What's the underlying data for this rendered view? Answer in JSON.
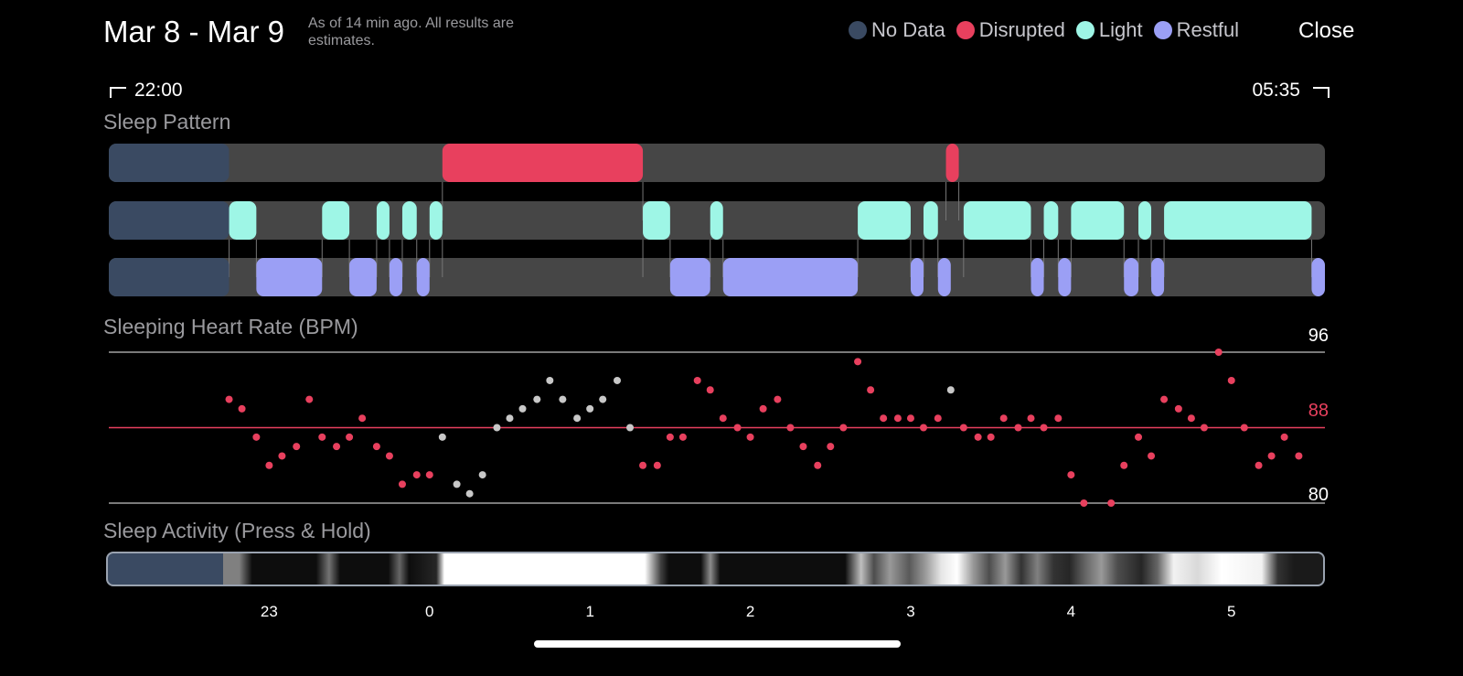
{
  "header": {
    "title": "Mar 8 - Mar 9",
    "subtitle": "As of 14 min ago. All results are estimates.",
    "close_label": "Close"
  },
  "legend": [
    {
      "label": "No Data",
      "color": "#3a4a62"
    },
    {
      "label": "Disrupted",
      "color": "#e8405e"
    },
    {
      "label": "Light",
      "color": "#9ef6e6"
    },
    {
      "label": "Restful",
      "color": "#9b9ff5"
    }
  ],
  "range": {
    "start": "22:00",
    "end": "05:35"
  },
  "sections": {
    "sleep_pattern": "Sleep Pattern",
    "heart_rate": "Sleeping Heart Rate (BPM)",
    "activity": "Sleep Activity (Press & Hold)"
  },
  "axis_ticks": [
    "23",
    "0",
    "1",
    "2",
    "3",
    "4",
    "5"
  ],
  "chart_data": [
    {
      "type": "timeline",
      "title": "Sleep Pattern",
      "x_unit": "hours since 22:00",
      "x_range": [
        0,
        7.583
      ],
      "rows": [
        {
          "name": "Disrupted",
          "segments": [
            [
              0,
              0.75,
              "No Data"
            ],
            [
              2.08,
              3.33
            ],
            [
              5.22,
              5.3
            ]
          ]
        },
        {
          "name": "Light",
          "segments": [
            [
              0,
              0.75,
              "No Data"
            ],
            [
              0.75,
              0.92
            ],
            [
              1.33,
              1.5
            ],
            [
              1.67,
              1.75
            ],
            [
              1.83,
              1.92
            ],
            [
              2.0,
              2.08
            ],
            [
              3.33,
              3.5
            ],
            [
              3.75,
              3.83
            ],
            [
              4.67,
              5.0
            ],
            [
              5.08,
              5.17
            ],
            [
              5.33,
              5.75
            ],
            [
              5.83,
              5.92
            ],
            [
              6.0,
              6.33
            ],
            [
              6.42,
              6.5
            ],
            [
              6.58,
              7.5
            ]
          ]
        },
        {
          "name": "Restful",
          "segments": [
            [
              0,
              0.75,
              "No Data"
            ],
            [
              0.92,
              1.33
            ],
            [
              1.5,
              1.67
            ],
            [
              1.75,
              1.83
            ],
            [
              1.92,
              2.0
            ],
            [
              3.5,
              3.75
            ],
            [
              3.83,
              4.67
            ],
            [
              5.0,
              5.08
            ],
            [
              5.17,
              5.25
            ],
            [
              5.75,
              5.83
            ],
            [
              5.92,
              6.0
            ],
            [
              6.33,
              6.42
            ],
            [
              6.5,
              6.58
            ],
            [
              7.5,
              7.583
            ]
          ]
        }
      ]
    },
    {
      "type": "scatter",
      "title": "Sleeping Heart Rate (BPM)",
      "ylim": [
        80,
        96
      ],
      "reference_lines": [
        96,
        88,
        80
      ],
      "x_unit": "hours since 22:00",
      "points": [
        [
          0.75,
          91,
          "red"
        ],
        [
          0.83,
          90,
          "red"
        ],
        [
          0.92,
          87,
          "red"
        ],
        [
          1.0,
          84,
          "red"
        ],
        [
          1.08,
          85,
          "red"
        ],
        [
          1.17,
          86,
          "red"
        ],
        [
          1.25,
          91,
          "red"
        ],
        [
          1.33,
          87,
          "red"
        ],
        [
          1.42,
          86,
          "red"
        ],
        [
          1.5,
          87,
          "red"
        ],
        [
          1.58,
          89,
          "red"
        ],
        [
          1.67,
          86,
          "red"
        ],
        [
          1.75,
          85,
          "red"
        ],
        [
          1.83,
          82,
          "red"
        ],
        [
          1.92,
          83,
          "red"
        ],
        [
          2.0,
          83,
          "red"
        ],
        [
          2.08,
          87,
          "gray"
        ],
        [
          2.17,
          82,
          "gray"
        ],
        [
          2.25,
          81,
          "gray"
        ],
        [
          2.33,
          83,
          "gray"
        ],
        [
          2.42,
          88,
          "gray"
        ],
        [
          2.5,
          89,
          "gray"
        ],
        [
          2.58,
          90,
          "gray"
        ],
        [
          2.67,
          91,
          "gray"
        ],
        [
          2.75,
          93,
          "gray"
        ],
        [
          2.83,
          91,
          "gray"
        ],
        [
          2.92,
          89,
          "gray"
        ],
        [
          3.0,
          90,
          "gray"
        ],
        [
          3.08,
          91,
          "gray"
        ],
        [
          3.17,
          93,
          "gray"
        ],
        [
          3.25,
          88,
          "gray"
        ],
        [
          3.33,
          84,
          "red"
        ],
        [
          3.42,
          84,
          "red"
        ],
        [
          3.5,
          87,
          "red"
        ],
        [
          3.58,
          87,
          "red"
        ],
        [
          3.67,
          93,
          "red"
        ],
        [
          3.75,
          92,
          "red"
        ],
        [
          3.83,
          89,
          "red"
        ],
        [
          3.92,
          88,
          "red"
        ],
        [
          4.0,
          87,
          "red"
        ],
        [
          4.08,
          90,
          "red"
        ],
        [
          4.17,
          91,
          "red"
        ],
        [
          4.25,
          88,
          "red"
        ],
        [
          4.33,
          86,
          "red"
        ],
        [
          4.42,
          84,
          "red"
        ],
        [
          4.5,
          86,
          "red"
        ],
        [
          4.58,
          88,
          "red"
        ],
        [
          4.67,
          95,
          "red"
        ],
        [
          4.75,
          92,
          "red"
        ],
        [
          4.83,
          89,
          "red"
        ],
        [
          4.92,
          89,
          "red"
        ],
        [
          5.0,
          89,
          "red"
        ],
        [
          5.08,
          88,
          "red"
        ],
        [
          5.17,
          89,
          "red"
        ],
        [
          5.25,
          92,
          "gray"
        ],
        [
          5.33,
          88,
          "red"
        ],
        [
          5.42,
          87,
          "red"
        ],
        [
          5.5,
          87,
          "red"
        ],
        [
          5.58,
          89,
          "red"
        ],
        [
          5.67,
          88,
          "red"
        ],
        [
          5.75,
          89,
          "red"
        ],
        [
          5.83,
          88,
          "red"
        ],
        [
          5.92,
          89,
          "red"
        ],
        [
          6.0,
          83,
          "red"
        ],
        [
          6.08,
          80,
          "red"
        ],
        [
          6.25,
          80,
          "red"
        ],
        [
          6.33,
          84,
          "red"
        ],
        [
          6.42,
          87,
          "red"
        ],
        [
          6.5,
          85,
          "red"
        ],
        [
          6.58,
          91,
          "red"
        ],
        [
          6.67,
          90,
          "red"
        ],
        [
          6.75,
          89,
          "red"
        ],
        [
          6.83,
          88,
          "red"
        ],
        [
          6.92,
          96,
          "red"
        ],
        [
          7.0,
          93,
          "red"
        ],
        [
          7.08,
          88,
          "red"
        ],
        [
          7.17,
          84,
          "red"
        ],
        [
          7.25,
          85,
          "red"
        ],
        [
          7.33,
          87,
          "red"
        ],
        [
          7.42,
          85,
          "red"
        ]
      ]
    },
    {
      "type": "heatmap",
      "title": "Sleep Activity (Press & Hold)",
      "x_unit": "hours since 22:00",
      "no_data_until": 0.72,
      "intensity_stops": [
        [
          0.72,
          0.5
        ],
        [
          0.82,
          0.5
        ],
        [
          0.9,
          0.05
        ],
        [
          1.3,
          0.05
        ],
        [
          1.38,
          0.45
        ],
        [
          1.45,
          0.05
        ],
        [
          1.75,
          0.05
        ],
        [
          1.82,
          0.4
        ],
        [
          1.88,
          0.05
        ],
        [
          2.05,
          0.15
        ],
        [
          2.1,
          1
        ],
        [
          3.35,
          1
        ],
        [
          3.45,
          0.25
        ],
        [
          3.5,
          0.05
        ],
        [
          3.7,
          0.05
        ],
        [
          3.76,
          0.55
        ],
        [
          3.82,
          0.05
        ],
        [
          4.6,
          0.05
        ],
        [
          4.7,
          0.75
        ],
        [
          4.78,
          0.3
        ],
        [
          4.88,
          0.6
        ],
        [
          5.0,
          0.35
        ],
        [
          5.1,
          0.6
        ],
        [
          5.2,
          0.9
        ],
        [
          5.3,
          1
        ],
        [
          5.4,
          0.6
        ],
        [
          5.5,
          0.3
        ],
        [
          5.6,
          0.6
        ],
        [
          5.7,
          0.2
        ],
        [
          5.8,
          0.5
        ],
        [
          5.9,
          0.2
        ],
        [
          6.0,
          0.15
        ],
        [
          6.1,
          0.4
        ],
        [
          6.2,
          0.6
        ],
        [
          6.3,
          0.3
        ],
        [
          6.45,
          0.15
        ],
        [
          6.55,
          0.4
        ],
        [
          6.65,
          0.95
        ],
        [
          6.8,
          0.85
        ],
        [
          6.95,
          1
        ],
        [
          7.2,
          0.95
        ],
        [
          7.3,
          0.2
        ],
        [
          7.4,
          0.1
        ],
        [
          7.583,
          0.1
        ]
      ]
    }
  ],
  "hr_labels": {
    "top": "96",
    "mid": "88",
    "bottom": "80"
  },
  "colors": {
    "red": "#e8405e",
    "gray": "#c8c8c8",
    "track": "#464646",
    "nodata": "#3a4a62",
    "light": "#9ef6e6",
    "restful": "#9b9ff5"
  }
}
